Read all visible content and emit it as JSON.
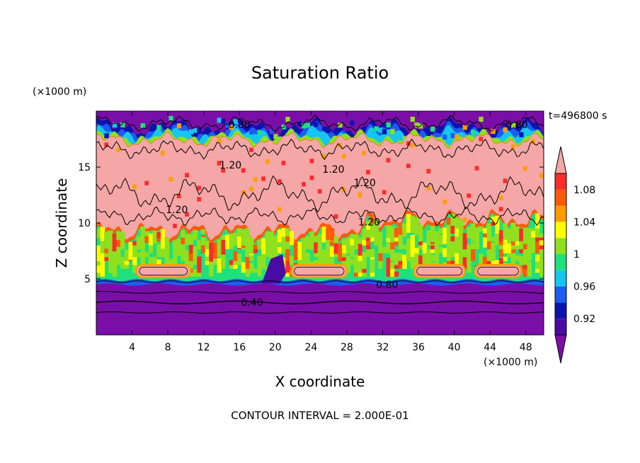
{
  "chart_data": {
    "type": "heatmap",
    "title": "Saturation Ratio",
    "xlabel": "X coordinate",
    "ylabel": "Z coordinate",
    "x_units": "(×1000 m)",
    "y_units": "(×1000 m)",
    "time_label": "t=496800 s",
    "footer": "CONTOUR INTERVAL = 2.000E-01",
    "xlim": [
      0,
      50
    ],
    "ylim": [
      0,
      20
    ],
    "x_ticks": [
      4,
      8,
      12,
      16,
      20,
      24,
      28,
      32,
      36,
      40,
      44,
      48
    ],
    "y_ticks": [
      5,
      10,
      15
    ],
    "colorbar": {
      "tick_labels": [
        "1.08",
        "1.04",
        "1",
        "0.96",
        "0.92"
      ],
      "tick_values": [
        1.08,
        1.04,
        1.0,
        0.96,
        0.92
      ],
      "levels": [
        {
          "min": null,
          "max": 0.9,
          "color": "#7a0fa8"
        },
        {
          "min": 0.9,
          "max": 0.92,
          "color": "#4b0ba6"
        },
        {
          "min": 0.92,
          "max": 0.94,
          "color": "#0b14ad"
        },
        {
          "min": 0.94,
          "max": 0.96,
          "color": "#1c5cf0"
        },
        {
          "min": 0.96,
          "max": 0.98,
          "color": "#16c6ee"
        },
        {
          "min": 0.98,
          "max": 1.0,
          "color": "#1ee07c"
        },
        {
          "min": 1.0,
          "max": 1.02,
          "color": "#8fe01f"
        },
        {
          "min": 1.02,
          "max": 1.04,
          "color": "#ffff00"
        },
        {
          "min": 1.04,
          "max": 1.06,
          "color": "#ff9d00"
        },
        {
          "min": 1.06,
          "max": 1.08,
          "color": "#ff5a0a"
        },
        {
          "min": 1.08,
          "max": 1.1,
          "color": "#ff2a2a"
        },
        {
          "min": 1.1,
          "max": null,
          "color": "#f5a6a6"
        }
      ]
    },
    "contour_labels": [
      {
        "text": "0.80",
        "x": 16,
        "y": 18.8
      },
      {
        "text": "0.80",
        "x": 47,
        "y": 18.8
      },
      {
        "text": "1.20",
        "x": 15,
        "y": 15.2
      },
      {
        "text": "1.20",
        "x": 26.5,
        "y": 14.8
      },
      {
        "text": "1.20",
        "x": 30,
        "y": 13.6
      },
      {
        "text": "1.20",
        "x": 9,
        "y": 11.2
      },
      {
        "text": "1.20",
        "x": 30.5,
        "y": 10.1
      },
      {
        "text": "0.80",
        "x": 32.5,
        "y": 4.5
      },
      {
        "text": "0.40",
        "x": 17.4,
        "y": 2.9
      }
    ]
  }
}
